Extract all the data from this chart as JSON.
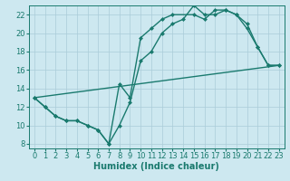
{
  "background_color": "#cde8f0",
  "grid_color": "#aaccd8",
  "line_color": "#1a7a6e",
  "marker": "D",
  "markersize": 2.5,
  "linewidth": 1.0,
  "xlabel": "Humidex (Indice chaleur)",
  "xlabel_fontsize": 7,
  "tick_fontsize": 6,
  "xlim": [
    -0.5,
    23.5
  ],
  "ylim": [
    7.5,
    23.0
  ],
  "yticks": [
    8,
    10,
    12,
    14,
    16,
    18,
    20,
    22
  ],
  "xticks": [
    0,
    1,
    2,
    3,
    4,
    5,
    6,
    7,
    8,
    9,
    10,
    11,
    12,
    13,
    14,
    15,
    16,
    17,
    18,
    19,
    20,
    21,
    22,
    23
  ],
  "series1_x": [
    0,
    1,
    2,
    3,
    4,
    5,
    6,
    7,
    8,
    9,
    10,
    11,
    12,
    13,
    15,
    16,
    17,
    18,
    19,
    20,
    21,
    22,
    23
  ],
  "series1_y": [
    13.0,
    12.0,
    11.0,
    10.5,
    10.5,
    10.0,
    9.5,
    8.0,
    14.5,
    13.0,
    19.5,
    20.5,
    21.5,
    22.0,
    22.0,
    21.5,
    22.5,
    22.5,
    22.0,
    21.0,
    18.5,
    16.5,
    16.5
  ],
  "series2_x": [
    0,
    1,
    2,
    3,
    4,
    5,
    6,
    7,
    8,
    9,
    10,
    11,
    12,
    13,
    14,
    15,
    16,
    17,
    18,
    19,
    20,
    21,
    22,
    23
  ],
  "series2_y": [
    13.0,
    12.0,
    11.0,
    10.5,
    10.5,
    10.0,
    9.5,
    8.0,
    10.0,
    12.5,
    17.0,
    18.0,
    20.0,
    21.0,
    21.5,
    23.0,
    22.0,
    22.0,
    22.5,
    22.0,
    20.5,
    18.5,
    16.5,
    16.5
  ],
  "series3_x": [
    0,
    23
  ],
  "series3_y": [
    13.0,
    16.5
  ]
}
